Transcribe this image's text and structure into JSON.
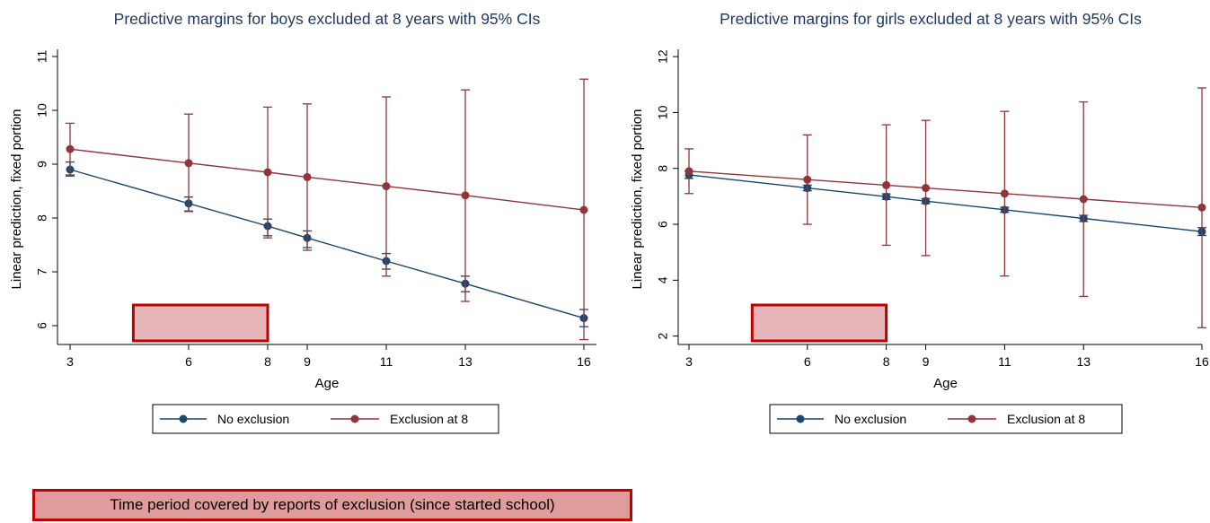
{
  "colors": {
    "no_exclusion": "#1a476f",
    "exclusion": "#90353b",
    "title": "#1f3864",
    "highlight_fill": "#e6b6b8",
    "highlight_border": "#c00000",
    "footnote_fill": "#e09c9c"
  },
  "chart_data": [
    {
      "type": "line",
      "title": "Predictive margins for boys excluded at 8 years with 95% CIs",
      "xlabel": "Age",
      "ylabel": "Linear prediction, fixed portion",
      "x": [
        3,
        6,
        8,
        9,
        11,
        13,
        16
      ],
      "xticks": [
        3,
        6,
        8,
        9,
        11,
        13,
        16
      ],
      "yticks": [
        6,
        7,
        8,
        9,
        10,
        11
      ],
      "xlim": [
        3,
        16
      ],
      "ylim": [
        5.65,
        11.05
      ],
      "series": [
        {
          "name": "No exclusion",
          "color": "#1a476f",
          "values": [
            8.9,
            8.27,
            7.85,
            7.63,
            7.2,
            6.78,
            6.14
          ],
          "ci_low": [
            8.78,
            8.13,
            7.67,
            7.45,
            7.05,
            6.63,
            5.98
          ],
          "ci_high": [
            9.04,
            8.39,
            7.98,
            7.76,
            7.34,
            6.92,
            6.3
          ]
        },
        {
          "name": "Exclusion at 8",
          "color": "#90353b",
          "values": [
            9.28,
            9.02,
            8.85,
            8.76,
            8.59,
            8.42,
            8.15
          ],
          "ci_low": [
            8.8,
            8.12,
            7.63,
            7.4,
            6.92,
            6.45,
            5.74
          ],
          "ci_high": [
            9.76,
            9.93,
            10.06,
            10.12,
            10.25,
            10.38,
            10.58
          ]
        }
      ],
      "highlight": {
        "x_start": 4.6,
        "x_end": 8
      }
    },
    {
      "type": "line",
      "title": "Predictive margins for girls excluded at 8 years with 95% CIs",
      "xlabel": "Age",
      "ylabel": "Linear prediction, fixed portion",
      "x": [
        3,
        6,
        8,
        9,
        11,
        13,
        16
      ],
      "xticks": [
        3,
        6,
        8,
        9,
        11,
        13,
        16
      ],
      "yticks": [
        2,
        4,
        6,
        8,
        10,
        12
      ],
      "xlim": [
        3,
        16
      ],
      "ylim": [
        1.7,
        12.1
      ],
      "series": [
        {
          "name": "No exclusion",
          "color": "#1a476f",
          "values": [
            7.77,
            7.3,
            6.99,
            6.83,
            6.52,
            6.21,
            5.74
          ],
          "ci_low": [
            7.64,
            7.2,
            6.89,
            6.74,
            6.43,
            6.1,
            5.6
          ],
          "ci_high": [
            7.9,
            7.4,
            7.09,
            6.92,
            6.61,
            6.32,
            5.88
          ]
        },
        {
          "name": "Exclusion at 8",
          "color": "#90353b",
          "values": [
            7.9,
            7.6,
            7.4,
            7.3,
            7.1,
            6.9,
            6.6
          ],
          "ci_low": [
            7.1,
            6.0,
            5.25,
            4.88,
            4.15,
            3.42,
            2.3
          ],
          "ci_high": [
            8.7,
            9.2,
            9.56,
            9.72,
            10.04,
            10.38,
            10.88
          ]
        }
      ],
      "highlight": {
        "x_start": 4.6,
        "x_end": 8
      }
    }
  ],
  "legend": {
    "items": [
      "No exclusion",
      "Exclusion at 8"
    ]
  },
  "footnote": {
    "text": "Time period covered by reports of exclusion (since started school)"
  }
}
